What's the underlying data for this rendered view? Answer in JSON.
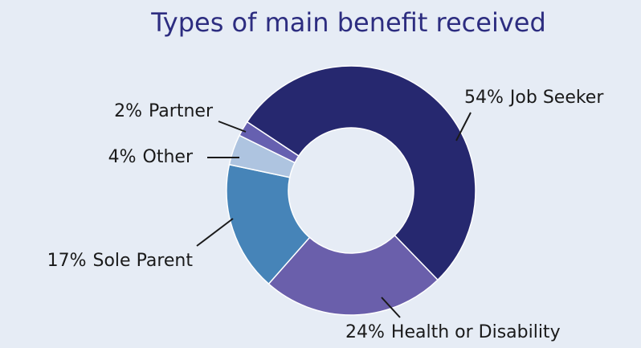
{
  "chart_data": {
    "type": "pie",
    "title": "Types of main benefit received",
    "categories": [
      "Job Seeker",
      "Health or Disability",
      "Sole Parent",
      "Other",
      "Partner"
    ],
    "values": [
      54,
      24,
      17,
      4,
      2
    ],
    "value_labels": [
      "54%",
      "24%",
      "17%",
      "4%",
      "2%"
    ],
    "colors": [
      "#26286f",
      "#6a5fab",
      "#4684b8",
      "#aec4e0",
      "#6660b0"
    ],
    "donut": true
  }
}
